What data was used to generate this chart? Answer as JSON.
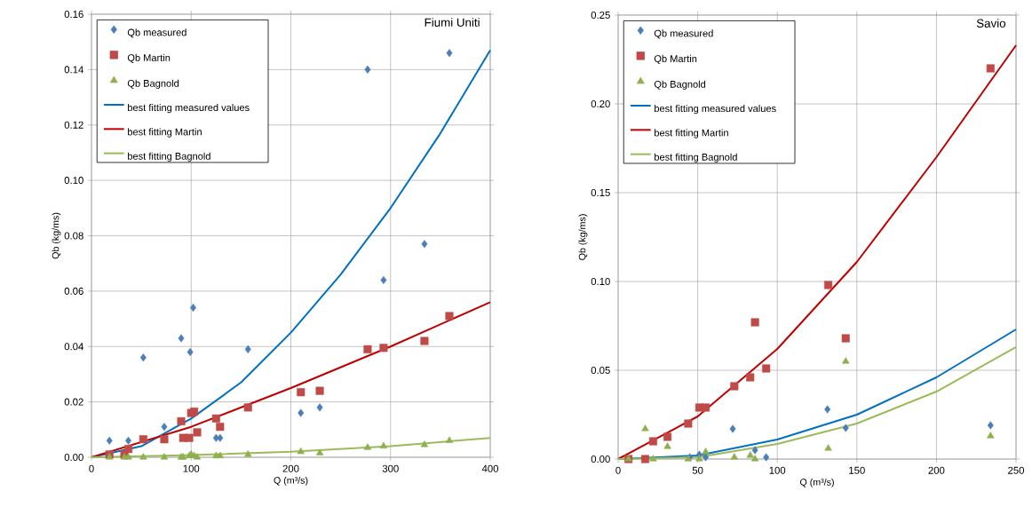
{
  "chart_data": [
    {
      "type": "scatter",
      "title": "Fiumi Uniti",
      "xlabel": "Q (m³/s)",
      "ylabel": "Qb (kg/ms)",
      "xlim": [
        0,
        400
      ],
      "xticks": [
        0,
        100,
        200,
        300,
        400
      ],
      "ylim": [
        0,
        0.16
      ],
      "yticks": [
        {
          "value": 0,
          "label": "0.00"
        },
        {
          "value": 0.02,
          "label": "0.02"
        },
        {
          "value": 0.04,
          "label": "0.04"
        },
        {
          "value": 0.06,
          "label": "0.06"
        },
        {
          "value": 0.08,
          "label": "0.08"
        },
        {
          "value": 0.1,
          "label": "0.10"
        },
        {
          "value": 0.12,
          "label": "0.12"
        },
        {
          "value": 0.14,
          "label": "0.14"
        },
        {
          "value": 0.16,
          "label": "0.16"
        }
      ],
      "grid": true,
      "legend": "top left",
      "series": [
        {
          "name": "Qb measured",
          "marker": "diamond",
          "color": "#4a7ebb",
          "x": [
            18,
            37,
            52,
            73,
            90,
            99,
            102,
            125,
            129,
            157,
            210,
            229,
            277,
            293,
            334,
            359
          ],
          "values": [
            0.006,
            0.006,
            0.036,
            0.011,
            0.043,
            0.038,
            0.054,
            0.007,
            0.007,
            0.039,
            0.016,
            0.018,
            0.14,
            0.064,
            0.077,
            0.146
          ]
        },
        {
          "name": "Qb Martin",
          "marker": "square",
          "color": "#be4b48",
          "x": [
            18,
            33,
            37,
            52,
            73,
            90,
            92,
            98,
            100,
            103,
            106,
            125,
            129,
            157,
            210,
            229,
            277,
            293,
            334,
            359
          ],
          "values": [
            0.001,
            0.001,
            0.003,
            0.0065,
            0.0065,
            0.013,
            0.007,
            0.007,
            0.016,
            0.0165,
            0.009,
            0.014,
            0.011,
            0.018,
            0.0235,
            0.024,
            0.039,
            0.0395,
            0.042,
            0.051
          ]
        },
        {
          "name": "Qb Bagnold",
          "marker": "triangle",
          "color": "#8fb04f",
          "x": [
            18,
            33,
            37,
            52,
            73,
            90,
            92,
            98,
            100,
            103,
            106,
            125,
            129,
            157,
            210,
            229,
            277,
            293,
            334,
            359
          ],
          "values": [
            0,
            0,
            0,
            0,
            0,
            0,
            0,
            0.0005,
            0.001,
            0.0005,
            0,
            0.0005,
            0.0005,
            0.001,
            0.002,
            0.0015,
            0.0035,
            0.004,
            0.0045,
            0.006
          ]
        },
        {
          "name": "best fitting measured values",
          "type": "line",
          "marker": "none",
          "color": "#0070c0",
          "x": [
            0,
            50,
            100,
            150,
            200,
            250,
            300,
            350,
            400
          ],
          "values": [
            0,
            0.004,
            0.014,
            0.027,
            0.045,
            0.066,
            0.09,
            0.117,
            0.147
          ]
        },
        {
          "name": "best fitting Martin",
          "type": "line",
          "marker": "none",
          "color": "#c00000",
          "x": [
            0,
            100,
            200,
            300,
            400
          ],
          "values": [
            0,
            0.011,
            0.025,
            0.04,
            0.056
          ]
        },
        {
          "name": "best fitting Bagnold",
          "type": "line",
          "marker": "none",
          "color": "#9bbb59",
          "x": [
            0,
            100,
            200,
            300,
            400
          ],
          "values": [
            0,
            0.0008,
            0.002,
            0.004,
            0.007
          ]
        }
      ]
    },
    {
      "type": "scatter",
      "title": "Savio",
      "xlabel": "Q (m³/s)",
      "ylabel": "Qb (kg/ms)",
      "xlim": [
        0,
        250
      ],
      "xticks": [
        0,
        50,
        100,
        150,
        200,
        250
      ],
      "ylim": [
        0,
        0.25
      ],
      "yticks": [
        {
          "value": 0,
          "label": "0.00"
        },
        {
          "value": 0.05,
          "label": "0.05"
        },
        {
          "value": 0.1,
          "label": "0.10"
        },
        {
          "value": 0.15,
          "label": "0.15"
        },
        {
          "value": 0.2,
          "label": "0.20"
        },
        {
          "value": 0.25,
          "label": "0.25"
        }
      ],
      "grid": true,
      "legend": "top left",
      "series": [
        {
          "name": "Qb measured",
          "marker": "diamond",
          "color": "#4a7ebb",
          "x": [
            45,
            51,
            55,
            72,
            86,
            93,
            131.5,
            143,
            234
          ],
          "values": [
            0.001,
            0.0025,
            0.001,
            0.017,
            0.005,
            0.001,
            0.028,
            0.0175,
            0.019
          ]
        },
        {
          "name": "Qb Martin",
          "marker": "square",
          "color": "#be4b48",
          "x": [
            6.5,
            17,
            22,
            31,
            44,
            51,
            55,
            73,
            83,
            86,
            93,
            132,
            143,
            234
          ],
          "values": [
            0,
            0,
            0.01,
            0.0125,
            0.02,
            0.029,
            0.029,
            0.041,
            0.046,
            0.077,
            0.051,
            0.098,
            0.068,
            0.22
          ]
        },
        {
          "name": "Qb Bagnold",
          "marker": "triangle",
          "color": "#8fb04f",
          "x": [
            6.5,
            17,
            22,
            31,
            44,
            51,
            55,
            73,
            83,
            86,
            132,
            143,
            234
          ],
          "values": [
            0,
            0.017,
            0,
            0.007,
            0,
            0,
            0.004,
            0.001,
            0.002,
            0,
            0.006,
            0.055,
            0.013
          ]
        },
        {
          "name": "best fitting measured values",
          "type": "line",
          "marker": "none",
          "color": "#0070c0",
          "x": [
            0,
            50,
            100,
            150,
            200,
            250
          ],
          "values": [
            0,
            0.002,
            0.011,
            0.025,
            0.046,
            0.073
          ]
        },
        {
          "name": "best fitting Martin",
          "type": "line",
          "marker": "none",
          "color": "#c00000",
          "x": [
            0,
            50,
            100,
            150,
            200,
            250
          ],
          "values": [
            0,
            0.024,
            0.062,
            0.111,
            0.17,
            0.233
          ]
        },
        {
          "name": "best fitting Bagnold",
          "type": "line",
          "marker": "none",
          "color": "#9bbb59",
          "x": [
            0,
            50,
            100,
            150,
            200,
            250
          ],
          "values": [
            0,
            0.001,
            0.0085,
            0.02,
            0.038,
            0.063
          ]
        }
      ]
    }
  ]
}
